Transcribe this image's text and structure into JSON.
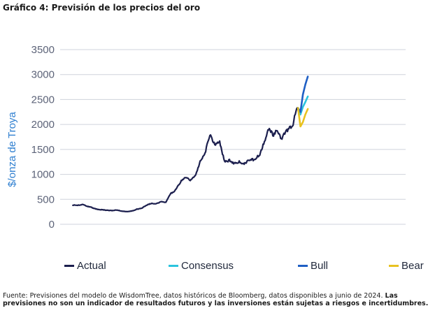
{
  "title": "Gráfico 4: Previsión de los precios del oro",
  "footnote": {
    "regular": "Fuente: Previsiones del modelo de WisdomTree, datos históricos de Bloomberg, datos disponibles a junio de 2024. ",
    "bold": "Las previsiones no son un indicador de resultados futuros y las inversiones están sujetas a riesgos e incertidumbres."
  },
  "chart_data": {
    "type": "line",
    "title": "Gráfico 4: Previsión de los precios del oro",
    "xlabel": "",
    "ylabel": "$/onza de Troya",
    "ylim": [
      0,
      3500
    ],
    "yticks": [
      0,
      500,
      1000,
      1500,
      2000,
      2500,
      3000,
      3500
    ],
    "grid": true,
    "legend_position": "bottom",
    "x_note": "monthly observations, approx. 2001-07 to 2024-06 plus forecast to 2025-06; x-axis has no printed labels",
    "series": [
      {
        "name": "Actual",
        "color": "#1c1f4e",
        "x": [
          2001.5,
          2002.0,
          2002.5,
          2003.0,
          2003.5,
          2004.0,
          2004.5,
          2005.0,
          2005.5,
          2006.0,
          2006.5,
          2007.0,
          2007.5,
          2008.0,
          2008.5,
          2009.0,
          2009.5,
          2010.0,
          2010.5,
          2011.0,
          2011.5,
          2011.7,
          2012.0,
          2012.5,
          2013.0,
          2013.5,
          2014.0,
          2014.5,
          2015.0,
          2015.5,
          2016.0,
          2016.5,
          2017.0,
          2017.5,
          2018.0,
          2018.5,
          2019.0,
          2019.5,
          2020.0,
          2020.6,
          2021.0,
          2021.5,
          2022.0,
          2022.3,
          2022.8,
          2023.0,
          2023.5,
          2024.0,
          2024.3,
          2024.5
        ],
        "values": [
          385,
          380,
          395,
          360,
          330,
          300,
          290,
          280,
          275,
          285,
          265,
          255,
          265,
          300,
          320,
          380,
          420,
          410,
          450,
          440,
          620,
          640,
          690,
          850,
          950,
          880,
          970,
          1250,
          1420,
          1800,
          1600,
          1650,
          1250,
          1280,
          1220,
          1250,
          1200,
          1300,
          1290,
          1400,
          1620,
          1920,
          1780,
          1900,
          1700,
          1800,
          1900,
          2000,
          2300,
          2330
        ]
      },
      {
        "name": "Consensus",
        "color": "#2bc4de",
        "x": [
          2024.5,
          2024.75,
          2025.0,
          2025.25,
          2025.5
        ],
        "values": [
          2330,
          2200,
          2350,
          2450,
          2560
        ]
      },
      {
        "name": "Bull",
        "color": "#1f5fc4",
        "x": [
          2024.5,
          2024.75,
          2025.0,
          2025.25,
          2025.5
        ],
        "values": [
          2330,
          2250,
          2600,
          2800,
          2960
        ]
      },
      {
        "name": "Bear",
        "color": "#e8c220",
        "x": [
          2024.5,
          2024.75,
          2025.0,
          2025.25,
          2025.5
        ],
        "values": [
          2330,
          1960,
          2050,
          2200,
          2310
        ]
      }
    ]
  }
}
